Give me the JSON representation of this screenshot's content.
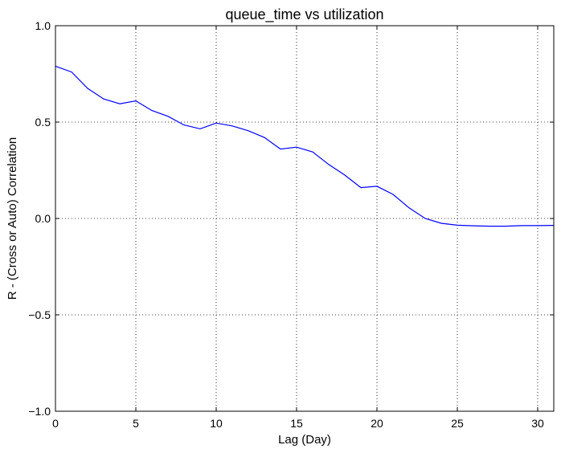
{
  "chart_data": {
    "type": "line",
    "title": "queue_time vs utilization",
    "xlabel": "Lag (Day)",
    "ylabel": "R - (Cross or Auto) Correlation",
    "xlim": [
      0,
      31
    ],
    "ylim": [
      -1.0,
      1.0
    ],
    "xticks": [
      0,
      5,
      10,
      15,
      20,
      25,
      30
    ],
    "xtick_labels": [
      "0",
      "5",
      "10",
      "15",
      "20",
      "25",
      "30"
    ],
    "yticks": [
      -1.0,
      -0.5,
      0.0,
      0.5,
      1.0
    ],
    "ytick_labels": [
      "−1.0",
      "−0.5",
      "0.0",
      "0.5",
      "1.0"
    ],
    "grid": true,
    "line_color": "#0000ff",
    "series": [
      {
        "x": [
          0,
          1,
          2,
          3,
          4,
          5,
          6,
          7,
          8,
          9,
          10,
          11,
          12,
          13,
          14,
          15,
          16,
          17,
          18,
          19,
          20,
          21,
          22,
          23,
          24,
          25,
          26,
          27,
          28,
          29,
          30,
          31
        ],
        "values": [
          0.79,
          0.76,
          0.675,
          0.62,
          0.595,
          0.61,
          0.56,
          0.53,
          0.485,
          0.465,
          0.495,
          0.48,
          0.455,
          0.42,
          0.36,
          0.37,
          0.345,
          0.28,
          0.225,
          0.16,
          0.167,
          0.125,
          0.055,
          0.0,
          -0.025,
          -0.035,
          -0.038,
          -0.04,
          -0.04,
          -0.037,
          -0.037,
          -0.036
        ]
      }
    ]
  }
}
